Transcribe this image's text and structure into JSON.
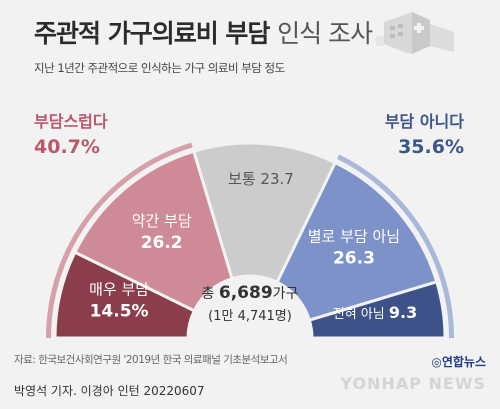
{
  "header": {
    "title_bold": "주관적 가구의료비 부담",
    "title_rest": "인식 조사",
    "subtitle": "지난 1년간 주관적으로 인식하는 가구 의료비 부담 정도"
  },
  "summary": {
    "burden_label": "부담스럽다",
    "burden_value": "40.7%",
    "no_burden_label": "부담 아니다",
    "no_burden_value": "35.6%"
  },
  "center": {
    "total_prefix": "총",
    "total_value": "6,689",
    "total_unit": "가구",
    "weighted": "(1만 4,741명)"
  },
  "chart_data": {
    "type": "pie",
    "subtype": "semicircle-donut",
    "categories": [
      "매우 부담",
      "약간 부담",
      "보통",
      "별로 부담 아님",
      "전혀 아님"
    ],
    "values": [
      14.5,
      26.2,
      23.7,
      26.3,
      9.3
    ],
    "value_labels": [
      "14.5%",
      "26.2",
      "23.7",
      "26.3",
      "9.3"
    ],
    "colors": [
      "#8c3d4c",
      "#cf8a97",
      "#cccccc",
      "#7c92c8",
      "#3c5289"
    ],
    "label_colors": [
      "#ffffff",
      "#ffffff",
      "#555555",
      "#ffffff",
      "#ffffff"
    ],
    "groups": [
      {
        "name": "부담스럽다",
        "value": 40.7,
        "color": "#d6a0ab"
      },
      {
        "name": "부담 아니다",
        "value": 35.6,
        "color": "#a9b8da"
      }
    ]
  },
  "footer": {
    "source": "자료: 한국보건사회연구원 '2019년 한국 의료패널 기초분석보고서",
    "credit": "박영석 기자. 이경아 인턴  20220607",
    "brand": "◎연합뉴스",
    "brand_en": "YONHAP NEWS"
  }
}
